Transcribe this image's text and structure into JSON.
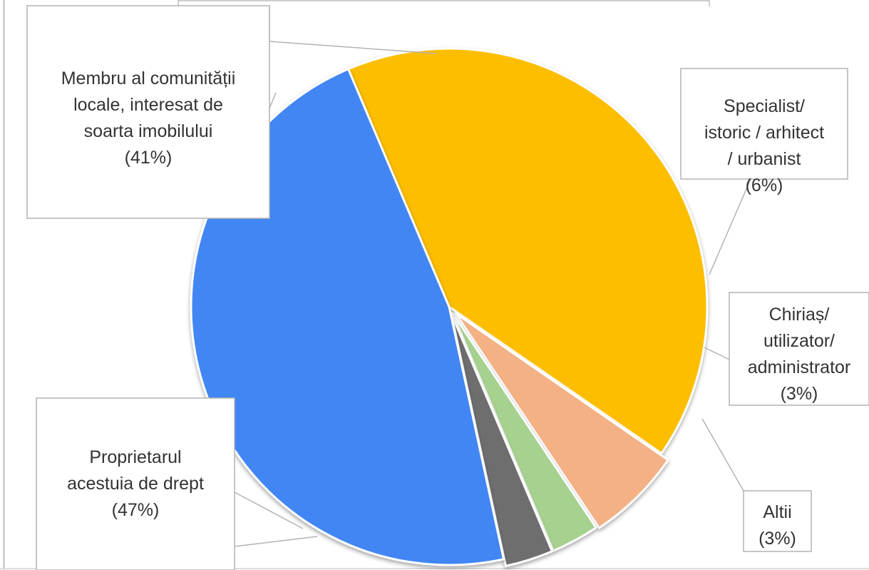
{
  "chart_data": {
    "type": "pie",
    "title": "",
    "slices": [
      {
        "name": "Membru al comunității locale, interesat de soarta imobilului",
        "value": 41,
        "color": "#FDBE00",
        "label_lines": [
          "Membru al comunității",
          "locale, interesat de",
          "soarta imobilului",
          "(41%)"
        ]
      },
      {
        "name": "Specialist/ istoric / arhitect / urbanist",
        "value": 6,
        "color": "#F3B185",
        "label_lines": [
          "Specialist/",
          "istoric / arhitect",
          "/ urbanist",
          "(6%)"
        ]
      },
      {
        "name": "Chiriaș/ utilizator/ administrator",
        "value": 3,
        "color": "#A6D18E",
        "label_lines": [
          "Chiriaș/",
          "utilizator/",
          "administrator",
          "(3%)"
        ]
      },
      {
        "name": "Altii",
        "value": 3,
        "color": "#6E6E6E",
        "label_lines": [
          "Altii",
          "(3%)"
        ]
      },
      {
        "name": "Proprietarul acestuia de drept",
        "value": 47,
        "color": "#4286F4",
        "label_lines": [
          "Proprietarul",
          "acestuia de drept",
          "(47%)"
        ]
      }
    ],
    "legend": "none",
    "labels": "callouts with leader lines"
  }
}
